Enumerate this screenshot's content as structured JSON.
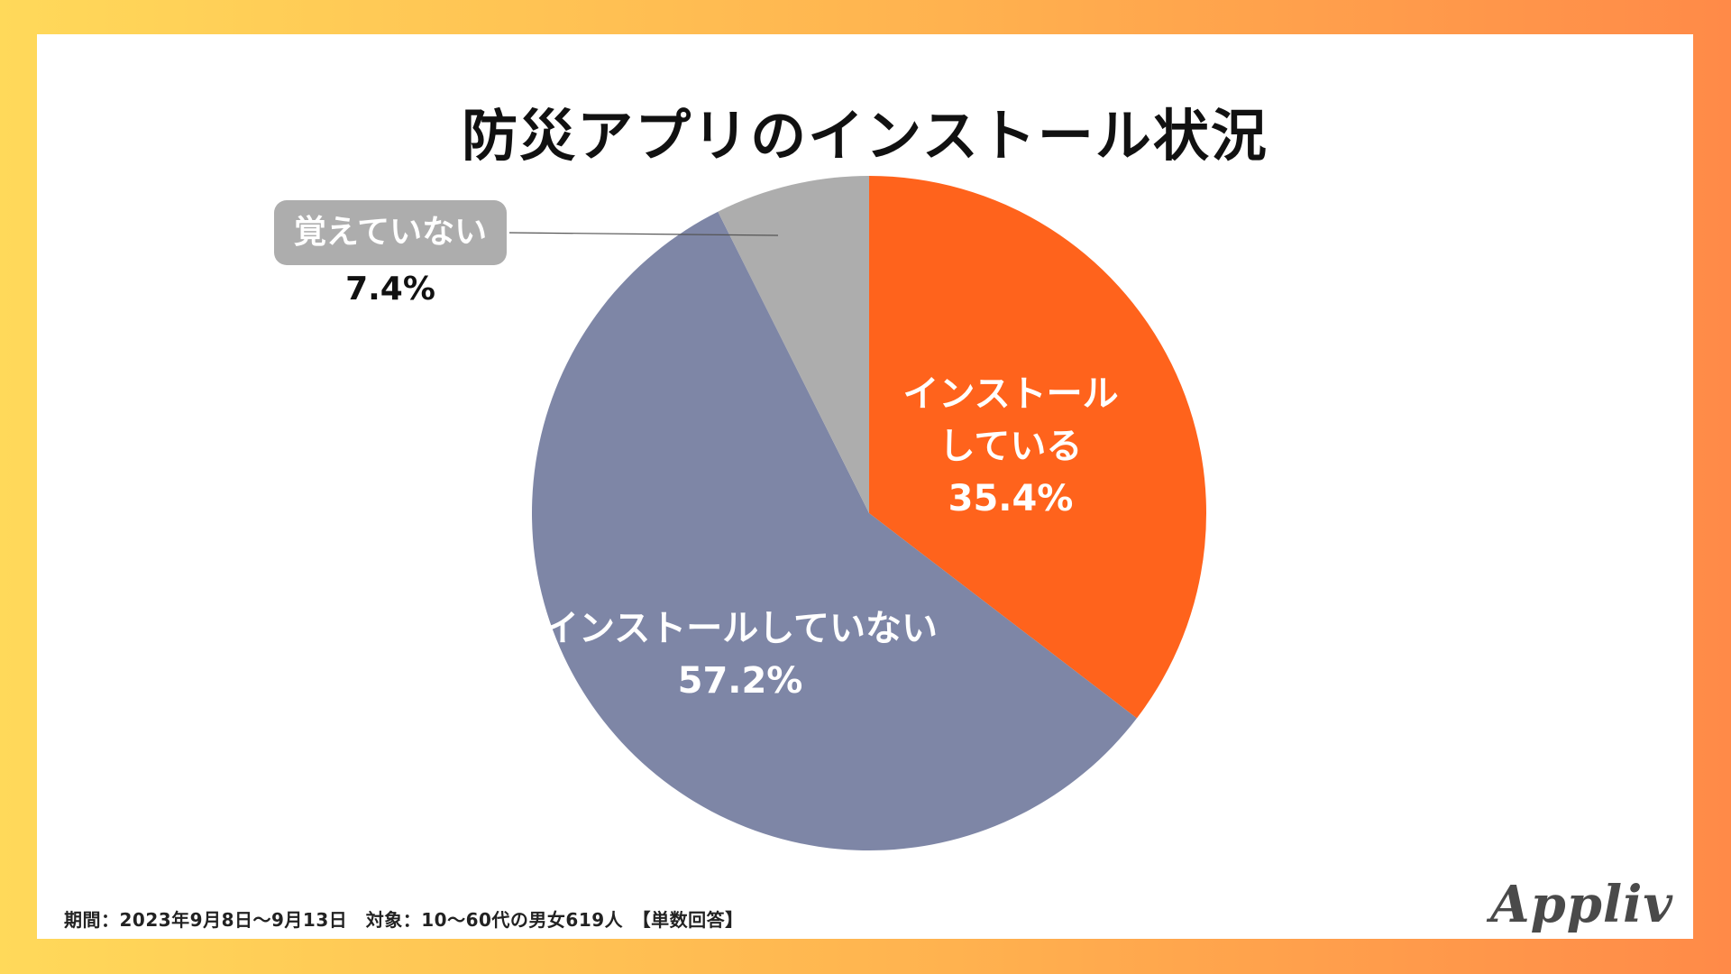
{
  "chart_data": {
    "type": "pie",
    "title": "防災アプリのインストール状況",
    "slices": [
      {
        "label": "インストールしている",
        "label_lines": [
          "インストール",
          "している"
        ],
        "value": 35.4,
        "value_text": "35.4%",
        "color": "#ff631c"
      },
      {
        "label": "インストールしていない",
        "label_lines": [
          "インストールしていない"
        ],
        "value": 57.2,
        "value_text": "57.2%",
        "color": "#7e86a6"
      },
      {
        "label": "覚えていない",
        "label_lines": [
          "覚えていない"
        ],
        "value": 7.4,
        "value_text": "7.4%",
        "color": "#adadad"
      }
    ],
    "legend": "none",
    "start": "12 o'clock, clockwise"
  },
  "footnote": "期間：2023年9月8日～9月13日　対象：10～60代の男女619人　【単数回答】",
  "logo": "Appliv"
}
